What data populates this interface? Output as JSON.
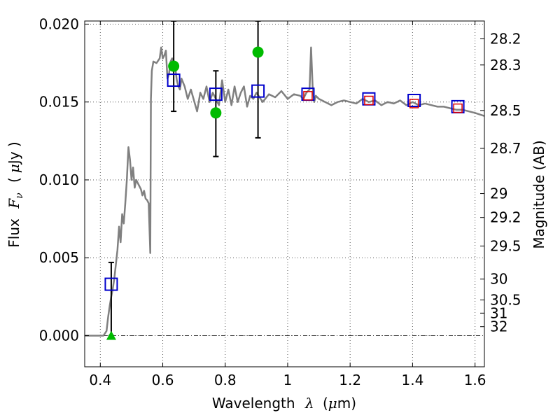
{
  "chart_data": {
    "type": "scatter",
    "xlabel": "Wavelength",
    "xlabel_symbol": "λ",
    "xlabel_unit_open": "(",
    "xlabel_unit_mu": "μ",
    "xlabel_unit_rest": "m)",
    "ylabel": "Flux",
    "ylabel_symbol": "F",
    "ylabel_sub": "ν",
    "ylabel_unit_open": "(",
    "ylabel_unit_mu": "μ",
    "ylabel_unit_rest": "Jy )",
    "y2label": "Magnitude (AB)",
    "xlim": [
      0.35,
      1.63
    ],
    "ylim": [
      -0.002,
      0.0202
    ],
    "grid": true,
    "x_ticks": [
      0.4,
      0.6,
      0.8,
      1.0,
      1.2,
      1.4,
      1.6
    ],
    "x_tick_labels": [
      "0.4",
      "0.6",
      "0.8",
      "1",
      "1.2",
      "1.4",
      "1.6"
    ],
    "y_ticks": [
      0.0,
      0.005,
      0.01,
      0.015,
      0.02
    ],
    "y_tick_labels": [
      "0.000",
      "0.005",
      "0.010",
      "0.015",
      "0.020"
    ],
    "y2_tick_labels": [
      "28.2",
      "28.3",
      "28.5",
      "28.7",
      "29",
      "29.2",
      "29.5",
      "30",
      "30.5",
      "31",
      "32"
    ],
    "reference_line_y": 0.0,
    "series": [
      {
        "kind": "model_spectrum",
        "color": "#808080",
        "x": [
          0.35,
          0.41,
          0.42,
          0.425,
          0.43,
          0.435,
          0.44,
          0.445,
          0.45,
          0.455,
          0.46,
          0.465,
          0.47,
          0.475,
          0.48,
          0.485,
          0.49,
          0.495,
          0.5,
          0.505,
          0.51,
          0.515,
          0.52,
          0.525,
          0.53,
          0.535,
          0.54,
          0.545,
          0.55,
          0.555,
          0.56,
          0.562,
          0.565,
          0.57,
          0.58,
          0.59,
          0.595,
          0.6,
          0.605,
          0.61,
          0.615,
          0.62,
          0.625,
          0.63,
          0.64,
          0.645,
          0.65,
          0.655,
          0.66,
          0.67,
          0.68,
          0.69,
          0.7,
          0.71,
          0.72,
          0.73,
          0.74,
          0.75,
          0.76,
          0.78,
          0.79,
          0.8,
          0.81,
          0.82,
          0.83,
          0.84,
          0.85,
          0.86,
          0.87,
          0.88,
          0.89,
          0.9,
          0.92,
          0.94,
          0.96,
          0.98,
          1.0,
          1.02,
          1.04,
          1.05,
          1.06,
          1.07,
          1.075,
          1.08,
          1.085,
          1.09,
          1.1,
          1.12,
          1.14,
          1.16,
          1.18,
          1.2,
          1.22,
          1.24,
          1.26,
          1.28,
          1.3,
          1.32,
          1.34,
          1.36,
          1.38,
          1.4,
          1.42,
          1.44,
          1.46,
          1.48,
          1.5,
          1.52,
          1.54,
          1.56,
          1.58,
          1.6,
          1.63
        ],
        "y": [
          0.0,
          0.0,
          0.0003,
          0.0012,
          0.0019,
          0.0025,
          0.003,
          0.0037,
          0.0046,
          0.0055,
          0.007,
          0.006,
          0.0078,
          0.0072,
          0.0085,
          0.01,
          0.0121,
          0.0113,
          0.01,
          0.0108,
          0.0095,
          0.01,
          0.0098,
          0.0096,
          0.0094,
          0.009,
          0.0093,
          0.0088,
          0.0087,
          0.0085,
          0.0053,
          0.0152,
          0.017,
          0.0176,
          0.0175,
          0.0178,
          0.0185,
          0.0178,
          0.018,
          0.0183,
          0.0165,
          0.0168,
          0.0176,
          0.0178,
          0.0172,
          0.0164,
          0.016,
          0.0158,
          0.0165,
          0.016,
          0.0152,
          0.0158,
          0.0151,
          0.0144,
          0.0156,
          0.0152,
          0.016,
          0.015,
          0.0156,
          0.0148,
          0.0164,
          0.015,
          0.0158,
          0.0148,
          0.016,
          0.015,
          0.0156,
          0.016,
          0.0147,
          0.0154,
          0.0152,
          0.0156,
          0.015,
          0.0155,
          0.0153,
          0.0157,
          0.0152,
          0.0155,
          0.0154,
          0.0152,
          0.0156,
          0.0158,
          0.0185,
          0.016,
          0.015,
          0.0154,
          0.0152,
          0.015,
          0.0148,
          0.015,
          0.0151,
          0.015,
          0.0149,
          0.0152,
          0.015,
          0.0151,
          0.0148,
          0.015,
          0.0149,
          0.0151,
          0.0148,
          0.015,
          0.0148,
          0.0149,
          0.0148,
          0.0147,
          0.0147,
          0.0146,
          0.0145,
          0.0145,
          0.0144,
          0.0143,
          0.0141
        ]
      },
      {
        "kind": "model_photometry",
        "marker": "square",
        "color": "#0000cc",
        "x": [
          0.435,
          0.635,
          0.77,
          0.905,
          1.065,
          1.26,
          1.405,
          1.545
        ],
        "y": [
          0.0033,
          0.0164,
          0.0155,
          0.0157,
          0.0155,
          0.0152,
          0.0151,
          0.0147
        ]
      },
      {
        "kind": "model_photometry_alt",
        "marker": "square",
        "color": "#dd0000",
        "x": [
          1.065,
          1.26,
          1.405,
          1.545
        ],
        "y": [
          0.0154,
          0.0151,
          0.0149,
          0.0146
        ]
      },
      {
        "kind": "observed",
        "marker": "circle",
        "color": "#00bb00",
        "x": [
          0.635,
          0.77,
          0.905
        ],
        "y": [
          0.0173,
          0.0143,
          0.0182
        ]
      },
      {
        "kind": "upper_limit",
        "marker": "triangle",
        "color": "#00bb00",
        "x": [
          0.435
        ],
        "y": [
          0.0
        ]
      }
    ],
    "error_bars": [
      {
        "x": 0.435,
        "low": 0.0,
        "high": 0.0047
      },
      {
        "x": 0.635,
        "low": 0.0144,
        "high": 0.0202
      },
      {
        "x": 0.77,
        "low": 0.0115,
        "high": 0.017
      },
      {
        "x": 0.905,
        "low": 0.0127,
        "high": 0.0202
      }
    ]
  }
}
